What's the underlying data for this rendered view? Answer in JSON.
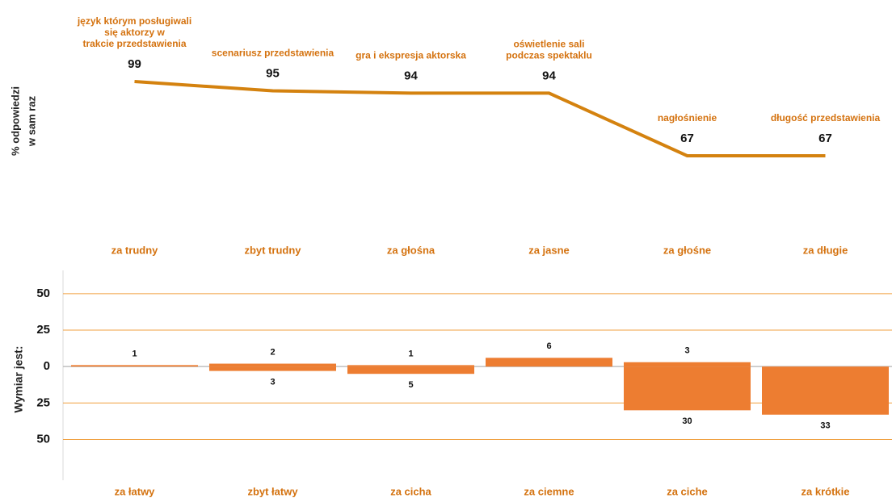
{
  "chart_data": [
    {
      "type": "line",
      "y_label": [
        "% odpowiedzi",
        "w sam raz"
      ],
      "categories": [
        [
          "język którym posługiwali",
          "się aktorzy w",
          "trakcie przedstawienia"
        ],
        [
          "scenariusz  przedstawienia"
        ],
        [
          "gra i ekspresja aktorska"
        ],
        [
          "oświetlenie sali",
          "podczas  spektaklu"
        ],
        [
          "nagłośnienie"
        ],
        [
          "długość  przedstawienia"
        ]
      ],
      "values": [
        99,
        95,
        94,
        94,
        67,
        67
      ],
      "color": "#d4820f",
      "label_color": "#d4720f"
    },
    {
      "type": "bar",
      "y_label": "Wymiar jest:",
      "ylim": [
        -78,
        66
      ],
      "yticks": [
        50,
        25,
        0,
        {
          "value": -25,
          "label": "25"
        },
        {
          "value": -50,
          "label": "50"
        }
      ],
      "grid": true,
      "grid_color": "#f0a040",
      "label_color": "#d4720f",
      "series": [
        {
          "categories": [
            "za trudny",
            "zbyt trudny",
            "za głośna",
            "za jasne",
            "za głośne",
            "za długie"
          ],
          "values": [
            1,
            2,
            1,
            6,
            3,
            null
          ],
          "color": "#ed7d31"
        },
        {
          "categories": [
            "za łatwy",
            "zbyt łatwy",
            "za cicha",
            "za ciemne",
            "za ciche",
            "za krótkie"
          ],
          "values": [
            null,
            -3,
            -5,
            null,
            -30,
            -33
          ],
          "value_labels": [
            null,
            "3",
            "5",
            null,
            "30",
            "33"
          ],
          "color": "#ed7d31"
        }
      ]
    }
  ]
}
